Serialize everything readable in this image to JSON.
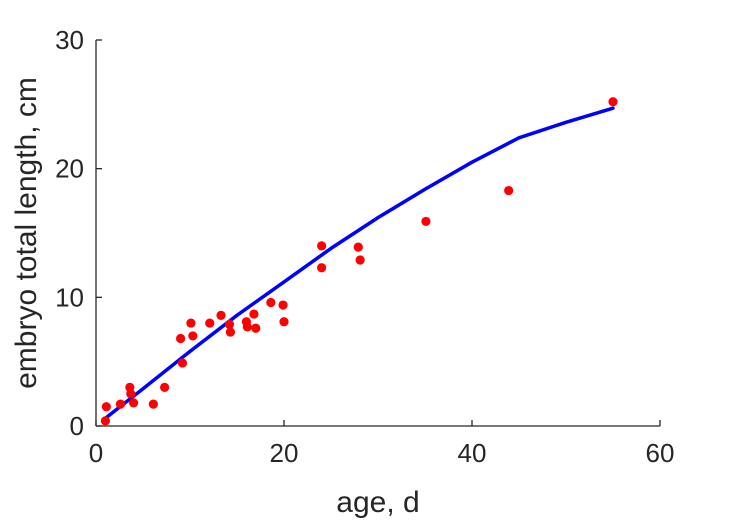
{
  "chart_data": {
    "type": "scatter",
    "xlabel": "age, d",
    "ylabel": "embryo total length, cm",
    "xlim": [
      0,
      60
    ],
    "ylim": [
      0,
      30
    ],
    "xticks": [
      "0",
      "20",
      "40",
      "60"
    ],
    "yticks": [
      "0",
      "10",
      "20",
      "30"
    ],
    "grid": false,
    "colors": {
      "points": "#ff0000",
      "fit": "#0000ff",
      "axis": "#262626"
    },
    "points": [
      {
        "x": 1.0,
        "y": 0.4
      },
      {
        "x": 1.1,
        "y": 1.5
      },
      {
        "x": 2.6,
        "y": 1.7
      },
      {
        "x": 3.6,
        "y": 3.0
      },
      {
        "x": 3.7,
        "y": 2.5
      },
      {
        "x": 4.0,
        "y": 1.8
      },
      {
        "x": 6.1,
        "y": 1.7
      },
      {
        "x": 7.3,
        "y": 3.0
      },
      {
        "x": 9.0,
        "y": 6.8
      },
      {
        "x": 9.2,
        "y": 4.9
      },
      {
        "x": 10.1,
        "y": 8.0
      },
      {
        "x": 10.3,
        "y": 7.0
      },
      {
        "x": 12.1,
        "y": 8.0
      },
      {
        "x": 13.3,
        "y": 8.6
      },
      {
        "x": 14.2,
        "y": 7.9
      },
      {
        "x": 14.3,
        "y": 7.3
      },
      {
        "x": 16.0,
        "y": 8.1
      },
      {
        "x": 16.1,
        "y": 7.7
      },
      {
        "x": 16.8,
        "y": 8.7
      },
      {
        "x": 17.0,
        "y": 7.6
      },
      {
        "x": 18.6,
        "y": 9.6
      },
      {
        "x": 19.9,
        "y": 9.4
      },
      {
        "x": 20.0,
        "y": 8.1
      },
      {
        "x": 24.0,
        "y": 14.0
      },
      {
        "x": 24.0,
        "y": 12.3
      },
      {
        "x": 27.9,
        "y": 13.9
      },
      {
        "x": 28.1,
        "y": 12.9
      },
      {
        "x": 35.1,
        "y": 15.9
      },
      {
        "x": 43.9,
        "y": 18.3
      },
      {
        "x": 55.0,
        "y": 25.2
      }
    ],
    "fit_curve": {
      "x": [
        1,
        5,
        10,
        15,
        20,
        25,
        30,
        35,
        40,
        45,
        50,
        55
      ],
      "y": [
        0.6,
        2.9,
        5.8,
        8.6,
        11.2,
        13.8,
        16.2,
        18.4,
        20.5,
        22.4,
        23.6,
        24.7
      ]
    }
  }
}
